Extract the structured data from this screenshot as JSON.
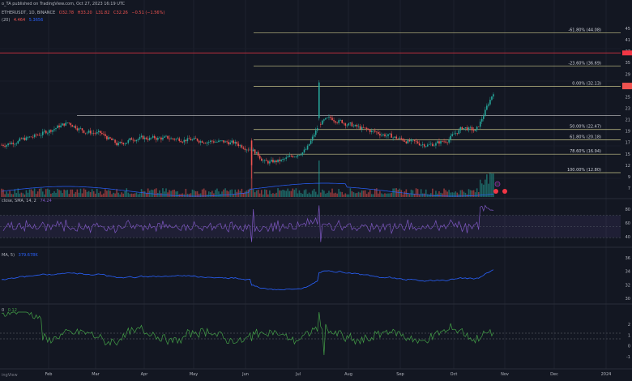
{
  "header": {
    "line1_prefix": "o_TA published on TradingView.com, Oct 27, 2023 16:19 UTC",
    "line2": {
      "symbol": "ETHERUSDT, 1D, BINANCE",
      "o": "O32.78",
      "h": "H33.20",
      "l": "L31.82",
      "c": "C32.26",
      "chg": "−0.51 (−1.56%)"
    },
    "line3": {
      "label": "(20)",
      "v1": "4.464",
      "v2": "5.3656"
    },
    "rsi_label": "close, SMA, 14, 2",
    "rsi_value": "74.24",
    "obv_label": "MA, 5)",
    "obv_value": "379.678K",
    "osc_label": "0",
    "osc_value": "0.12",
    "brand": "ingView"
  },
  "colors": {
    "background": "#131722",
    "up": "#26a69a",
    "down": "#ef5350",
    "fib_line": "#c8c58a",
    "sma": "#2962ff",
    "rsi": "#7e57c2",
    "osc": "#43a047",
    "red_line": "#f23645"
  },
  "chart_data": [
    {
      "type": "line",
      "series": [
        {
          "values": [
            16,
            17,
            18,
            19,
            20,
            21,
            22,
            23,
            24,
            25,
            26,
            27,
            28,
            29,
            30,
            31,
            32,
            33
          ]
        }
      ],
      "ylim": [
        7,
        46
      ],
      "fib_levels": [
        {
          "label": "-61.80% (44.08)",
          "value": 44.08
        },
        {
          "label": "-23.60% (36.69)",
          "value": 36.69
        },
        {
          "label": "0.00% (32.13)",
          "value": 32.13
        },
        {
          "label": "50.00% (22.47)",
          "value": 22.47
        },
        {
          "label": "61.80% (20.18)",
          "value": 20.18
        },
        {
          "label": "78.60% (16.94)",
          "value": 16.94
        },
        {
          "label": "100.00% (12.80)",
          "value": 12.8
        }
      ],
      "red_level": 39.6,
      "right_axis_labels": [
        "45",
        "41",
        "37",
        "35",
        "29",
        "27",
        "25",
        "23",
        "21",
        "19",
        "17",
        "15",
        "12",
        "9",
        "7"
      ],
      "x_tick_labels": [
        "Feb",
        "Mar",
        "Apr",
        "May",
        "Jun",
        "Jul",
        "Aug",
        "Sep",
        "Oct",
        "Nov",
        "Dec",
        "2024"
      ]
    },
    {
      "type": "line",
      "name": "RSI",
      "ylim": [
        20,
        90
      ],
      "band": [
        30,
        70
      ],
      "right_axis_labels": [
        "80",
        "60",
        "40"
      ]
    },
    {
      "type": "line",
      "name": "OBV",
      "right_axis_labels": [
        "36",
        "34",
        "32",
        "30"
      ]
    },
    {
      "type": "line",
      "name": "Oscillator",
      "right_axis_labels": [
        "2",
        "1",
        "0",
        "-1"
      ]
    }
  ]
}
